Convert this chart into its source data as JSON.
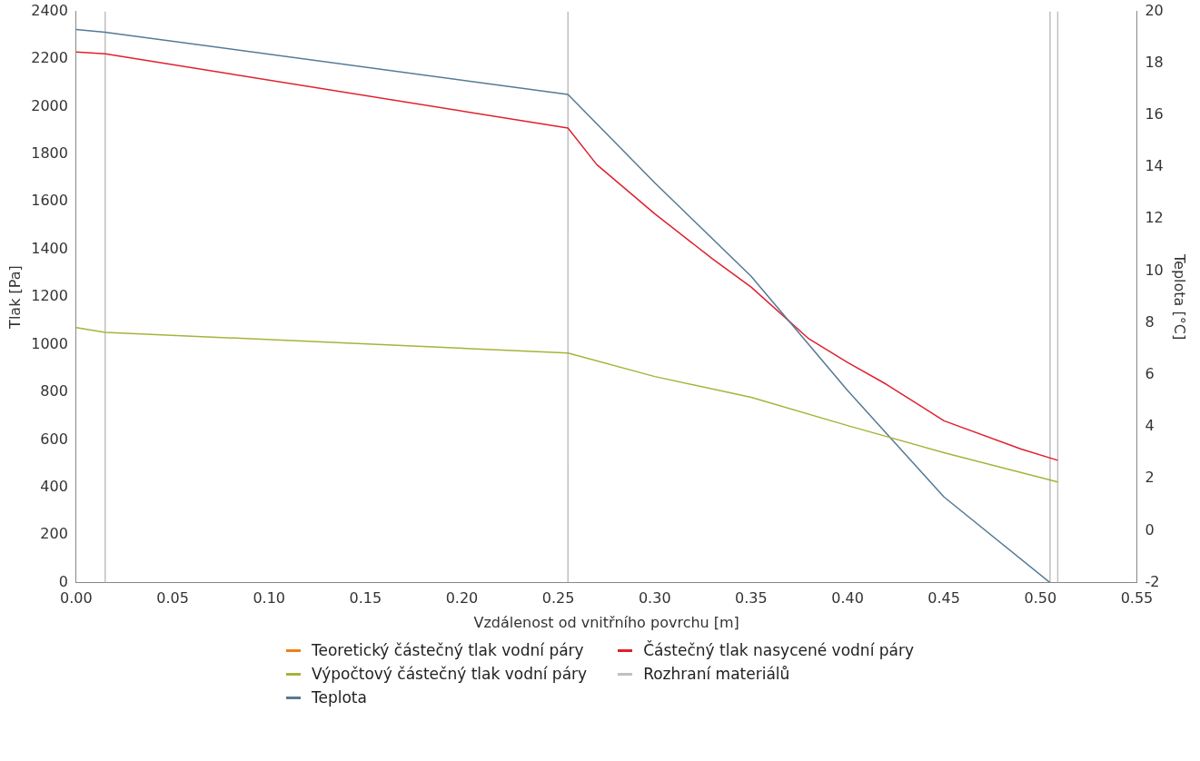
{
  "chart_data": {
    "type": "line",
    "xlabel": "Vzdálenost od vnitřního povrchu [m]",
    "ylabel": "Tlak [Pa]",
    "y2label": "Teplota [°C]",
    "xlim": [
      0,
      0.55
    ],
    "xticks": [
      {
        "value": 0,
        "label": "0.00"
      },
      {
        "value": 0.05,
        "label": "0.05"
      },
      {
        "value": 0.1,
        "label": "0.10"
      },
      {
        "value": 0.15,
        "label": "0.15"
      },
      {
        "value": 0.2,
        "label": "0.20"
      },
      {
        "value": 0.25,
        "label": "0.25"
      },
      {
        "value": 0.3,
        "label": "0.30"
      },
      {
        "value": 0.35,
        "label": "0.35"
      },
      {
        "value": 0.4,
        "label": "0.40"
      },
      {
        "value": 0.45,
        "label": "0.45"
      },
      {
        "value": 0.5,
        "label": "0.50"
      },
      {
        "value": 0.55,
        "label": "0.55"
      }
    ],
    "ylim": [
      0,
      2400
    ],
    "yticks": [
      0,
      200,
      400,
      600,
      800,
      1000,
      1200,
      1400,
      1600,
      1800,
      2000,
      2200,
      2400
    ],
    "y2lim": [
      -2,
      20
    ],
    "y2ticks": [
      -2,
      0,
      2,
      4,
      6,
      8,
      10,
      12,
      14,
      16,
      18,
      20
    ],
    "series": [
      {
        "name": "Teoretický částečný tlak vodní páry",
        "color": "#f07f1a"
      },
      {
        "name": "Výpočtový částečný tlak vodní páry",
        "color": "#a8b23a",
        "x": [
          0,
          0.015,
          0.255,
          0.3,
          0.35,
          0.4,
          0.45,
          0.509
        ],
        "values": [
          1072,
          1052,
          965,
          866,
          779,
          660,
          546,
          423
        ]
      },
      {
        "name": "Teplota",
        "color": "#557a95",
        "axis": "y2",
        "x": [
          0,
          0.015,
          0.255,
          0.3,
          0.35,
          0.4,
          0.45,
          0.505
        ],
        "values": [
          19.3,
          19.2,
          16.8,
          13.4,
          9.8,
          5.4,
          1.3,
          -2.0
        ]
      },
      {
        "name": "Částečný tlak nasycené vodní páry",
        "color": "#e0202e",
        "x": [
          0,
          0.015,
          0.255,
          0.27,
          0.3,
          0.33,
          0.35,
          0.38,
          0.4,
          0.42,
          0.45,
          0.49,
          0.509
        ],
        "values": [
          2230,
          2222,
          1910,
          1756,
          1550,
          1360,
          1242,
          1024,
          925,
          834,
          680,
          561,
          514
        ]
      },
      {
        "name": "Rozhraní materiálů",
        "color": "#c0c0c0",
        "x": [
          0.015,
          0.015,
          null,
          0.255,
          0.255,
          null,
          0.505,
          0.505,
          null,
          0.509,
          0.509
        ],
        "values": [
          0,
          2400,
          null,
          0,
          2400,
          null,
          0,
          2400,
          null,
          0,
          2400
        ]
      }
    ],
    "legend": "bottom",
    "grid": false,
    "marker": "none",
    "line_style": "solid"
  }
}
